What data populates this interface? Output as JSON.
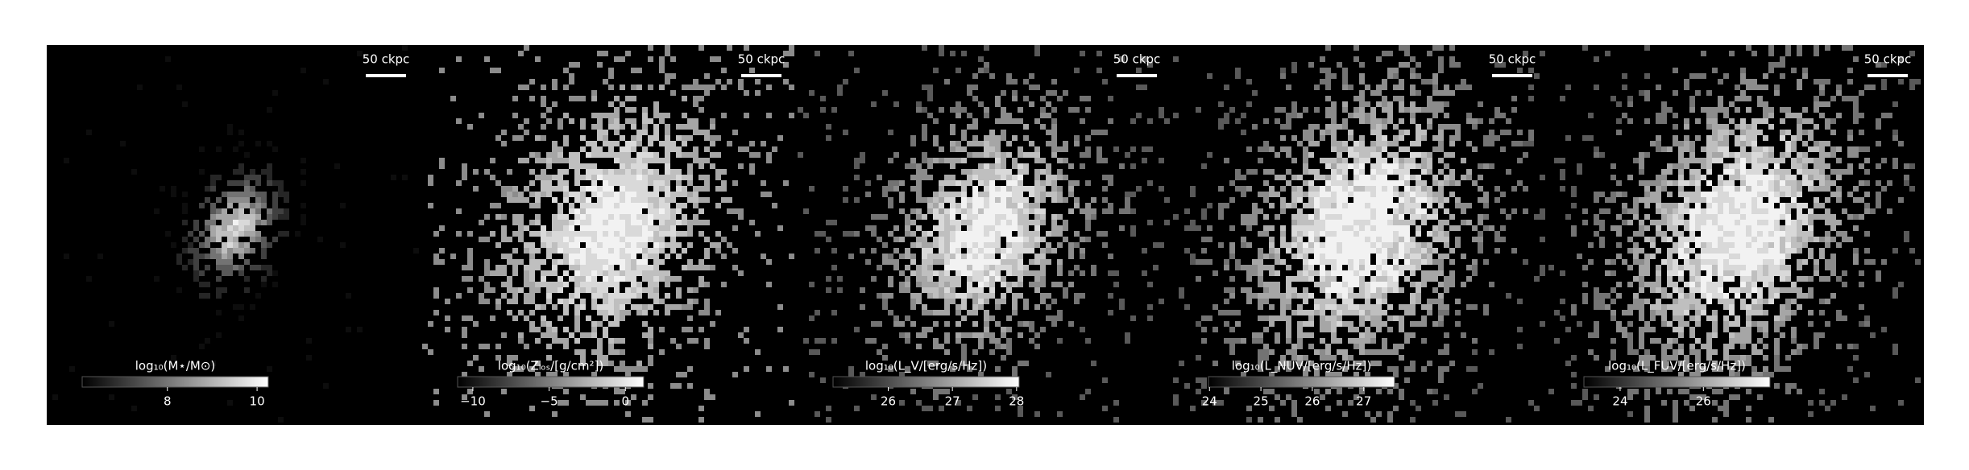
{
  "chart_data": [
    {
      "type": "image",
      "scale_bar": "50 ckpc",
      "colorbar_label": "log₁₀(M⋆/M⊙)",
      "clim": [
        6.1,
        10.25
      ],
      "ticks": [
        8,
        10
      ],
      "cmap": "gray"
    },
    {
      "type": "image",
      "scale_bar": "50 ckpc",
      "colorbar_label": "log₁₀(Zₗₒₛ/[g/cm²])",
      "clim": [
        -11,
        1.2
      ],
      "ticks": [
        {
          "value": -10,
          "label": "−10"
        },
        {
          "value": -5,
          "label": "−5"
        },
        0
      ],
      "cmap": "gray"
    },
    {
      "type": "image",
      "scale_bar": "50 ckpc",
      "colorbar_label": "log₁₀(L_V/[erg/s/Hz])",
      "clim": [
        25.14,
        28.04
      ],
      "ticks": [
        26,
        27,
        28
      ],
      "cmap": "gray"
    },
    {
      "type": "image",
      "scale_bar": "50 ckpc",
      "colorbar_label": "log₁₀(L_NUV/[erg/s/Hz])",
      "clim": [
        23.98,
        27.6
      ],
      "ticks": [
        24,
        25,
        26,
        27
      ],
      "cmap": "gray"
    },
    {
      "type": "image",
      "scale_bar": "50 ckpc",
      "colorbar_label": "log₁₀(L_FUV/[erg/s/Hz])",
      "clim": [
        23.13,
        27.6
      ],
      "ticks": [
        24,
        26
      ],
      "cmap": "gray"
    }
  ]
}
